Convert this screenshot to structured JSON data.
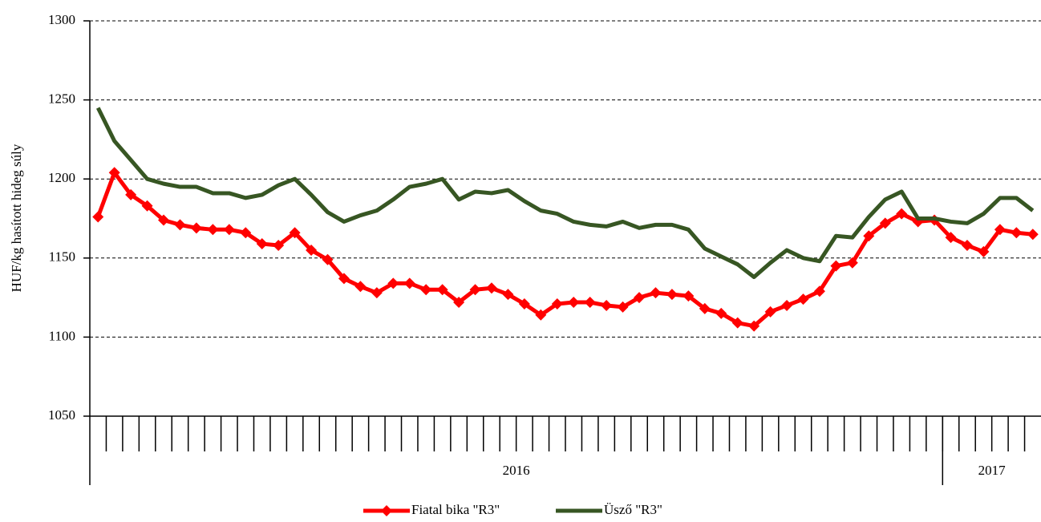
{
  "chart_data": {
    "type": "line",
    "ylabel": "HUF/kg hasított hideg súly",
    "categories": [
      null,
      null,
      null,
      null,
      null,
      null,
      null,
      null,
      null,
      null,
      null,
      null,
      null,
      null,
      null,
      null,
      null,
      null,
      null,
      null,
      null,
      null,
      null,
      null,
      null,
      null,
      null,
      null,
      null,
      null,
      null,
      null,
      null,
      null,
      null,
      null,
      null,
      null,
      null,
      null,
      null,
      null,
      null,
      null,
      null,
      null,
      null,
      null,
      null,
      null,
      null,
      null,
      null,
      null,
      null,
      null,
      null,
      null
    ],
    "x_groups": [
      {
        "label": "2016",
        "span": 52
      },
      {
        "label": "2017",
        "span": 6
      }
    ],
    "ylim": [
      1050,
      1300
    ],
    "yticks": [
      1050,
      1100,
      1150,
      1200,
      1250,
      1300
    ],
    "grid": true,
    "legend": "bottom",
    "series": [
      {
        "name": "Fiatal bika \"R3\"",
        "color": "#ff0000",
        "marker": "diamond",
        "values": [
          1176,
          1204,
          1190,
          1183,
          1174,
          1171,
          1169,
          1168,
          1168,
          1166,
          1159,
          1158,
          1166,
          1155,
          1149,
          1137,
          1132,
          1128,
          1134,
          1134,
          1130,
          1130,
          1122,
          1130,
          1131,
          1127,
          1121,
          1114,
          1121,
          1122,
          1122,
          1120,
          1119,
          1125,
          1128,
          1127,
          1126,
          1118,
          1115,
          1109,
          1107,
          1116,
          1120,
          1124,
          1129,
          1145,
          1147,
          1164,
          1172,
          1178,
          1173,
          1174,
          1163,
          1158,
          1154,
          1168,
          1166,
          1165
        ]
      },
      {
        "name": "Üsző \"R3\"",
        "color": "#375623",
        "marker": "none",
        "values": [
          1245,
          1224,
          1212,
          1200,
          1197,
          1195,
          1195,
          1191,
          1191,
          1188,
          1190,
          1196,
          1200,
          1190,
          1179,
          1173,
          1177,
          1180,
          1187,
          1195,
          1197,
          1200,
          1187,
          1192,
          1191,
          1193,
          1186,
          1180,
          1178,
          1173,
          1171,
          1170,
          1173,
          1169,
          1171,
          1171,
          1168,
          1156,
          1151,
          1146,
          1138,
          1147,
          1155,
          1150,
          1148,
          1164,
          1163,
          1176,
          1187,
          1192,
          1175,
          1175,
          1173,
          1172,
          1178,
          1188,
          1188,
          1180
        ]
      }
    ]
  }
}
